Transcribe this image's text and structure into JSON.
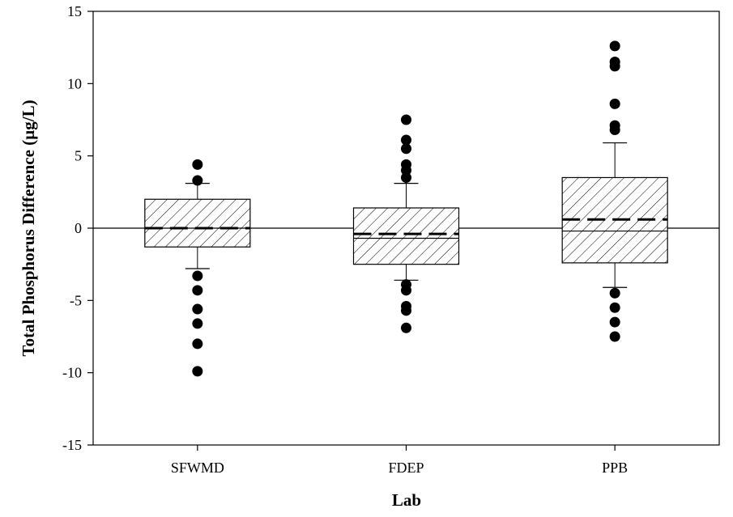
{
  "chart_data": {
    "type": "box",
    "title": "",
    "xlabel": "Lab",
    "ylabel": "Total Phosphorus Difference (µg/L)",
    "ylim": [
      -15,
      15
    ],
    "yticks": [
      15,
      10,
      5,
      0,
      -5,
      -10,
      -15
    ],
    "reference_line": 0,
    "grid": false,
    "categories": [
      "SFWMD",
      "FDEP",
      "PPB"
    ],
    "boxes": [
      {
        "name": "SFWMD",
        "q1": -1.3,
        "median": 0.0,
        "mean": 0.0,
        "q3": 2.0,
        "whisker_low": -2.8,
        "whisker_high": 3.1,
        "outliers": [
          4.4,
          3.3,
          -3.3,
          -4.3,
          -5.6,
          -6.6,
          -8.0,
          -9.9
        ]
      },
      {
        "name": "FDEP",
        "q1": -2.5,
        "median": -0.7,
        "mean": -0.4,
        "q3": 1.4,
        "whisker_low": -3.6,
        "whisker_high": 3.1,
        "outliers": [
          7.5,
          6.1,
          5.5,
          4.4,
          4.0,
          3.5,
          -3.9,
          -4.3,
          -5.4,
          -5.7,
          -6.9
        ]
      },
      {
        "name": "PPB",
        "q1": -2.4,
        "median": -0.2,
        "mean": 0.6,
        "q3": 3.5,
        "whisker_low": -4.1,
        "whisker_high": 5.9,
        "outliers": [
          12.6,
          11.5,
          11.2,
          8.6,
          7.1,
          6.8,
          -4.5,
          -5.5,
          -6.5,
          -7.5
        ]
      }
    ]
  }
}
